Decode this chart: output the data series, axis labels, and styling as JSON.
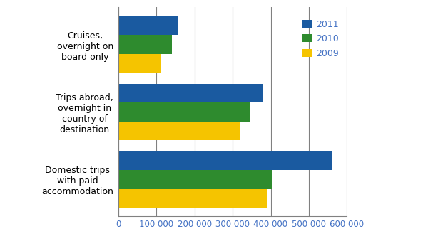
{
  "categories": [
    "Domestic trips\nwith paid\naccommodation",
    "Trips abroad,\novernight in\ncountry of\ndestination",
    "Cruises,\novernight on\nboard only"
  ],
  "series": {
    "2011": [
      560000,
      378000,
      155000
    ],
    "2010": [
      405000,
      345000,
      140000
    ],
    "2009": [
      390000,
      318000,
      112000
    ]
  },
  "colors": {
    "2011": "#1a5aa0",
    "2010": "#2e8b2e",
    "2009": "#f5c400"
  },
  "xlim": [
    0,
    600000
  ],
  "xticks": [
    0,
    100000,
    200000,
    300000,
    400000,
    500000,
    600000
  ],
  "bar_height": 0.28,
  "background_color": "#ffffff",
  "grid_color": "#808080",
  "legend_labels": [
    "2011",
    "2010",
    "2009"
  ],
  "tick_fontsize": 8.5,
  "legend_fontsize": 9,
  "category_fontsize": 9
}
